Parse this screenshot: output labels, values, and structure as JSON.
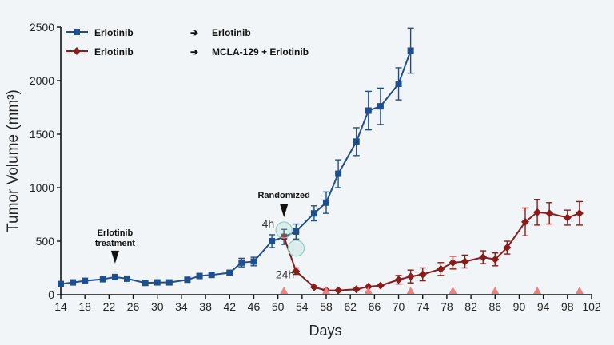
{
  "chart_data": {
    "type": "line",
    "xlabel": "Days",
    "ylabel": "Tumor Volume (mm³)",
    "xlim": [
      14,
      102
    ],
    "ylim": [
      0,
      2500
    ],
    "xticks": [
      14,
      18,
      22,
      26,
      30,
      34,
      38,
      42,
      46,
      50,
      54,
      58,
      62,
      66,
      70,
      74,
      78,
      82,
      86,
      90,
      94,
      98,
      102
    ],
    "yticks": [
      0,
      500,
      1000,
      1500,
      2000,
      2500
    ],
    "grid": false,
    "legend": [
      {
        "label": "Erlotinib",
        "arrow": "➔",
        "target": "Erlotinib",
        "color": "#1f4e8c",
        "marker": "square"
      },
      {
        "label": "Erlotinib",
        "arrow": "➔",
        "target": "MCLA-129 + Erlotinib",
        "color": "#8b1a1a",
        "marker": "diamond"
      }
    ],
    "series": [
      {
        "color": "#1f4e8c",
        "marker": "square",
        "x": [
          14,
          16,
          18,
          21,
          23,
          25,
          28,
          30,
          32,
          35,
          37,
          39,
          42,
          44,
          46,
          49,
          51,
          53,
          56,
          58,
          60,
          63,
          65,
          67,
          70,
          72
        ],
        "y": [
          100,
          115,
          130,
          145,
          165,
          150,
          110,
          115,
          115,
          140,
          175,
          185,
          205,
          300,
          310,
          500,
          540,
          590,
          760,
          860,
          1130,
          1430,
          1720,
          1760,
          1970,
          2280
        ],
        "err": [
          0,
          0,
          0,
          0,
          0,
          0,
          0,
          0,
          0,
          0,
          0,
          0,
          0,
          40,
          40,
          60,
          70,
          70,
          70,
          100,
          130,
          130,
          180,
          170,
          150,
          210
        ]
      },
      {
        "color": "#8b1a1a",
        "marker": "diamond",
        "x": [
          51,
          53,
          56,
          58,
          60,
          63,
          65,
          67,
          70,
          72,
          74,
          77,
          79,
          81,
          84,
          86,
          88,
          91,
          93,
          95,
          98,
          100
        ],
        "y": [
          540,
          220,
          70,
          40,
          40,
          50,
          75,
          85,
          140,
          170,
          190,
          240,
          300,
          310,
          350,
          330,
          440,
          680,
          770,
          760,
          720,
          760
        ],
        "err": [
          0,
          30,
          0,
          0,
          0,
          0,
          0,
          0,
          40,
          60,
          60,
          60,
          60,
          60,
          60,
          60,
          60,
          130,
          120,
          100,
          70,
          110
        ]
      }
    ],
    "dosing_days": [
      51,
      58,
      65,
      72,
      79,
      86,
      93,
      100
    ],
    "dosing_color": "#f08080",
    "annotations": {
      "erlotinib_treatment": {
        "line1": "Erlotinib",
        "line2": "treatment",
        "x": 23,
        "y": 165
      },
      "randomized": {
        "label": "Randomized",
        "x": 51,
        "y": 560
      },
      "four_h": {
        "label": "4h",
        "x": 51,
        "y": 560
      },
      "twenty_four_h": {
        "label": "24h",
        "x": 52.5,
        "y": 390
      }
    }
  }
}
